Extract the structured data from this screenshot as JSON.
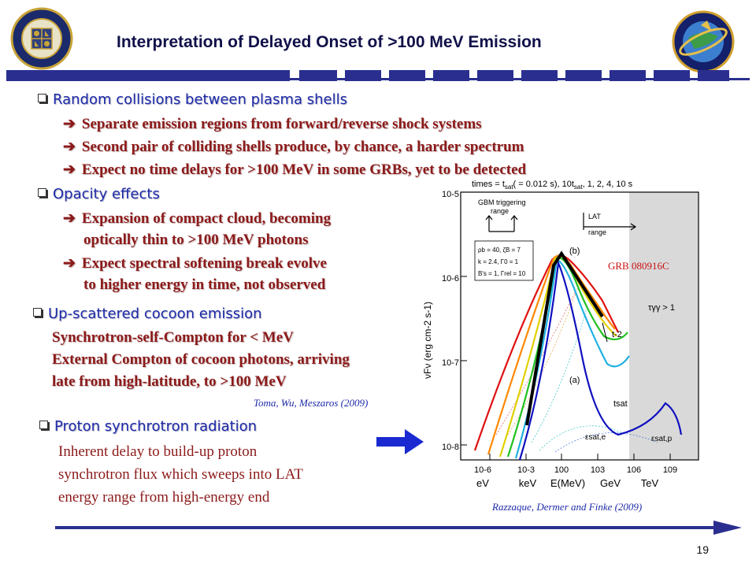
{
  "slide": {
    "title": "Interpretation of Delayed Onset of >100 MeV Emission",
    "page_number": "19"
  },
  "logos": {
    "left": "naval-research-laboratory-seal",
    "right": "space-science-division-seal"
  },
  "sections": {
    "collisions": {
      "header": "Random collisions between plasma shells",
      "items": [
        "Separate emission regions from forward/reverse shock systems",
        "Second pair of colliding shells produce, by chance, a harder spectrum",
        "Expect no time delays for >100 MeV in some GRBs, yet to be detected"
      ]
    },
    "opacity": {
      "header": "Opacity effects",
      "item1_line1": "Expansion of compact cloud, becoming",
      "item1_line2": "optically thin to >100 MeV photons",
      "item2_line1": "Expect spectral softening break evolve",
      "item2_line2": "to higher energy in time, not observed"
    },
    "cocoon": {
      "header": "Up-scattered cocoon emission",
      "line1": "Synchrotron-self-Compton for < MeV",
      "line2": "External Compton of cocoon photons, arriving",
      "line3": "late from high-latitude, to >100 MeV",
      "citation": "Toma, Wu, Meszaros (2009)"
    },
    "proton": {
      "header": "Proton synchrotron radiation",
      "line1": "Inherent delay to build-up proton",
      "line2": "synchrotron flux which sweeps into LAT",
      "line3": "energy range from high-energy end"
    }
  },
  "figure": {
    "grb_label": "GRB 080916C",
    "top_caption": "times = t",
    "top_caption_sat": "sat",
    "top_caption_rest": "( = 0.012 s), 10t",
    "top_caption_sat2": "sat",
    "top_caption_end": ", 1, 2, 4, 10 s",
    "gbm_label_1": "GBM triggering",
    "gbm_label_2": "range",
    "lat_label_1": "LAT",
    "lat_label_2": "range",
    "params": [
      "ρb = 40, ζB = 7",
      "k = 2.4, Γ0 = 1",
      "B's = 1, Γrel = 10"
    ],
    "tau_label": "τγγ > 1",
    "label_b": "(b)",
    "label_a": "(a)",
    "t_minus2": "t-2",
    "tsat_label": "tsat",
    "eps_sat_e": "εsat,e",
    "eps_sat_p": "εsat,p",
    "ylabel": "νFν (erg cm-2 s-1)",
    "xlabel_mid": "E(MeV)",
    "y_ticks": [
      "10-5",
      "10-6",
      "10-7",
      "10-8"
    ],
    "x_ticks": [
      "10-6",
      "10-3",
      "100",
      "103",
      "106",
      "109"
    ],
    "x_units": [
      "eV",
      "keV",
      "E(MeV)",
      "GeV",
      "TeV"
    ],
    "citation": "Razzaque, Dermer and Finke (2009)"
  },
  "colors": {
    "title": "#10104a",
    "header_blue": "#1d2aa8",
    "body_red": "#8c1a1a",
    "band": "#2a2f8f",
    "grb_red": "#cc1111",
    "arrow_blue": "#1a2ad0"
  }
}
